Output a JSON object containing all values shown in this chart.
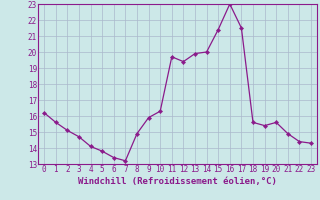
{
  "hours": [
    0,
    1,
    2,
    3,
    4,
    5,
    6,
    7,
    8,
    9,
    10,
    11,
    12,
    13,
    14,
    15,
    16,
    17,
    18,
    19,
    20,
    21,
    22,
    23
  ],
  "values": [
    16.2,
    15.6,
    15.1,
    14.7,
    14.1,
    13.8,
    13.4,
    13.2,
    14.9,
    15.9,
    16.3,
    19.7,
    19.4,
    19.9,
    20.0,
    21.4,
    23.0,
    21.5,
    15.6,
    15.4,
    15.6,
    14.9,
    14.4,
    14.3
  ],
  "line_color": "#8b1a8b",
  "marker": "D",
  "marker_size": 2.2,
  "bg_color": "#cce8e8",
  "grid_color": "#aab8cc",
  "xlabel": "Windchill (Refroidissement éolien,°C)",
  "xlabel_color": "#8b1a8b",
  "xlabel_fontsize": 6.5,
  "ylim": [
    13,
    23
  ],
  "xlim": [
    -0.5,
    23.5
  ],
  "yticks": [
    13,
    14,
    15,
    16,
    17,
    18,
    19,
    20,
    21,
    22,
    23
  ],
  "xticks": [
    0,
    1,
    2,
    3,
    4,
    5,
    6,
    7,
    8,
    9,
    10,
    11,
    12,
    13,
    14,
    15,
    16,
    17,
    18,
    19,
    20,
    21,
    22,
    23
  ],
  "tick_fontsize": 5.5,
  "tick_color": "#8b1a8b",
  "spine_color": "#8b1a8b",
  "line_width": 0.9
}
